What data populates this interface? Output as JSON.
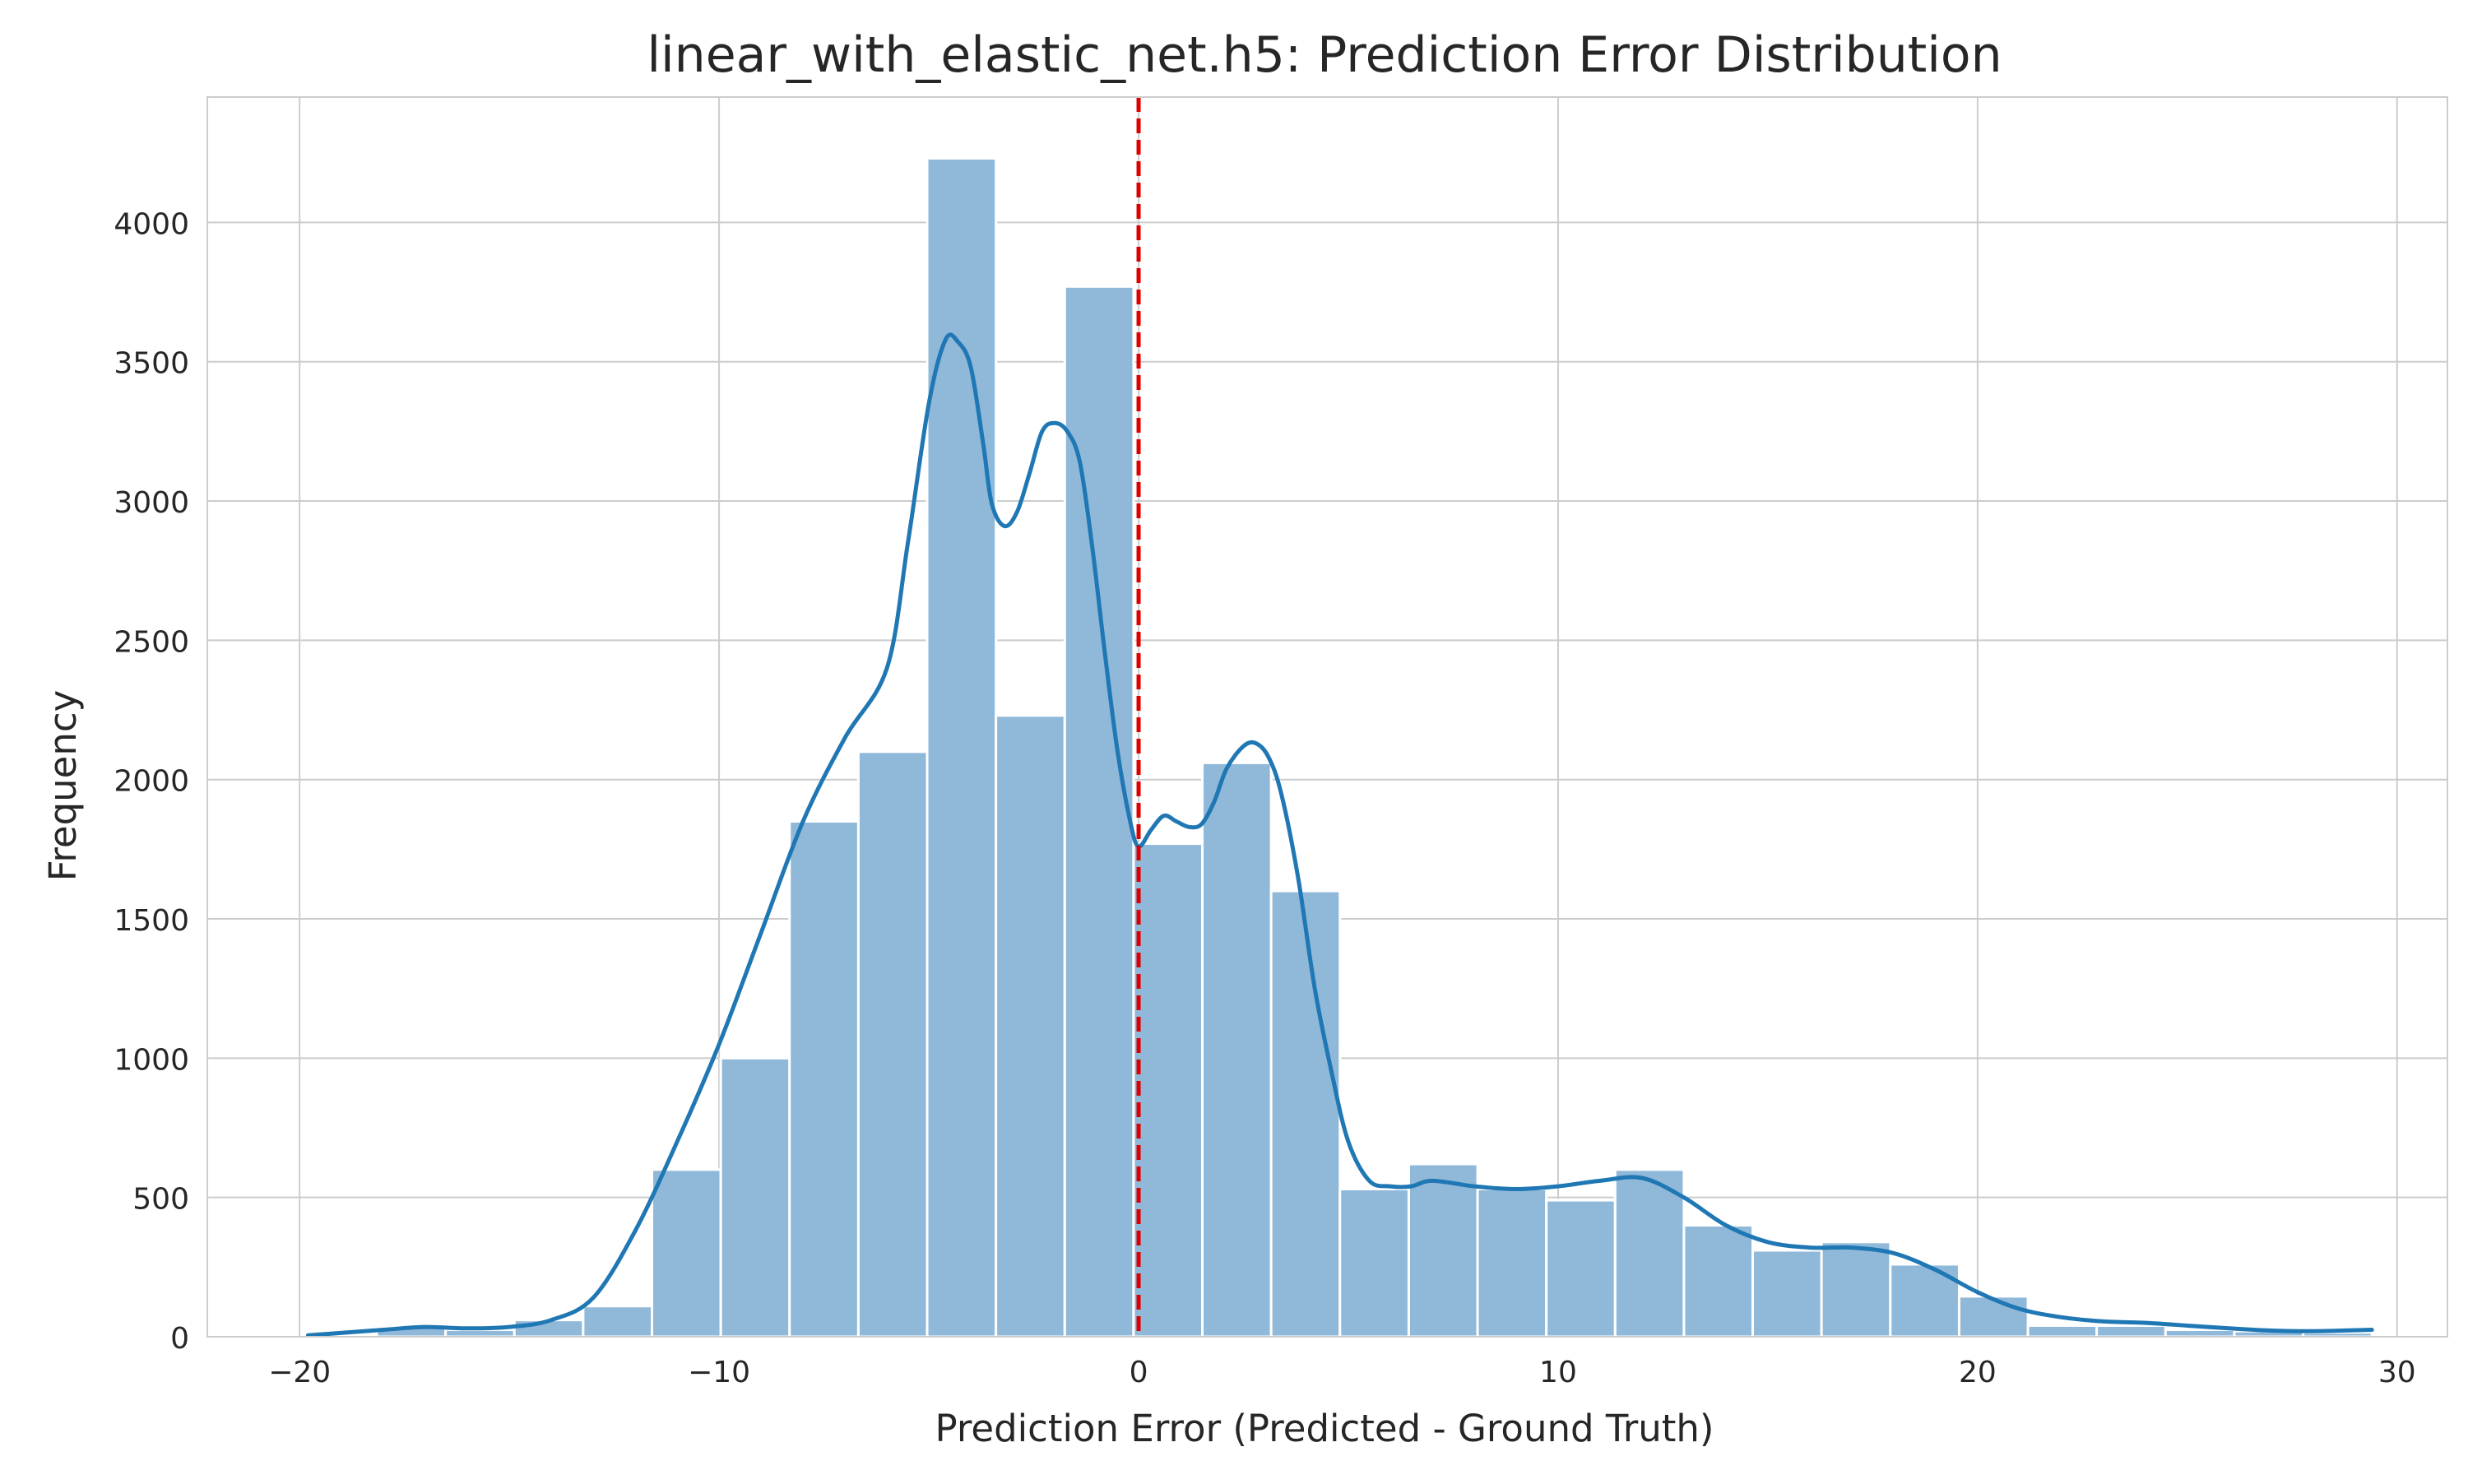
{
  "chart_data": {
    "type": "histogram",
    "title": "linear_with_elastic_net.h5: Prediction Error Distribution",
    "xlabel": "Prediction Error (Predicted - Ground Truth)",
    "ylabel": "Frequency",
    "xlim": [
      -22.2,
      31.2
    ],
    "ylim": [
      0,
      4450
    ],
    "xticks": [
      -20,
      -10,
      0,
      10,
      20,
      30
    ],
    "xtick_labels": [
      "−20",
      "−10",
      "0",
      "10",
      "20",
      "30"
    ],
    "yticks": [
      0,
      500,
      1000,
      1500,
      2000,
      2500,
      3000,
      3500,
      4000
    ],
    "grid": true,
    "bar_color": "#8fb8d9",
    "kde_color": "#1f77b4",
    "reference_line": {
      "x": 0,
      "color": "#dd0000",
      "style": "dashed"
    },
    "bins": [
      {
        "x0": -19.8,
        "x1": -18.16,
        "value": 5
      },
      {
        "x0": -18.16,
        "x1": -16.52,
        "value": 35
      },
      {
        "x0": -16.52,
        "x1": -14.88,
        "value": 25
      },
      {
        "x0": -14.88,
        "x1": -13.24,
        "value": 60
      },
      {
        "x0": -13.24,
        "x1": -11.6,
        "value": 110
      },
      {
        "x0": -11.6,
        "x1": -9.96,
        "value": 600
      },
      {
        "x0": -9.96,
        "x1": -8.32,
        "value": 1000
      },
      {
        "x0": -8.32,
        "x1": -6.68,
        "value": 1850
      },
      {
        "x0": -6.68,
        "x1": -5.04,
        "value": 2100
      },
      {
        "x0": -5.04,
        "x1": -3.4,
        "value": 4230
      },
      {
        "x0": -3.4,
        "x1": -1.76,
        "value": 2230
      },
      {
        "x0": -1.76,
        "x1": -0.12,
        "value": 3770
      },
      {
        "x0": -0.12,
        "x1": 1.52,
        "value": 1770
      },
      {
        "x0": 1.52,
        "x1": 3.16,
        "value": 2060
      },
      {
        "x0": 3.16,
        "x1": 4.8,
        "value": 1600
      },
      {
        "x0": 4.8,
        "x1": 6.44,
        "value": 530
      },
      {
        "x0": 6.44,
        "x1": 8.08,
        "value": 620
      },
      {
        "x0": 8.08,
        "x1": 9.72,
        "value": 530
      },
      {
        "x0": 9.72,
        "x1": 11.36,
        "value": 490
      },
      {
        "x0": 11.36,
        "x1": 13.0,
        "value": 600
      },
      {
        "x0": 13.0,
        "x1": 14.64,
        "value": 400
      },
      {
        "x0": 14.64,
        "x1": 16.28,
        "value": 310
      },
      {
        "x0": 16.28,
        "x1": 17.92,
        "value": 340
      },
      {
        "x0": 17.92,
        "x1": 19.56,
        "value": 260
      },
      {
        "x0": 19.56,
        "x1": 21.2,
        "value": 145
      },
      {
        "x0": 21.2,
        "x1": 22.84,
        "value": 40
      },
      {
        "x0": 22.84,
        "x1": 24.48,
        "value": 40
      },
      {
        "x0": 24.48,
        "x1": 26.12,
        "value": 25
      },
      {
        "x0": 26.12,
        "x1": 27.76,
        "value": 20
      },
      {
        "x0": 27.76,
        "x1": 29.4,
        "value": 15
      }
    ],
    "kde": {
      "x": [
        -19.8,
        -18,
        -17,
        -16,
        -15,
        -14,
        -13,
        -12,
        -11,
        -10,
        -9,
        -8,
        -7,
        -6,
        -5.5,
        -5,
        -4.6,
        -4.3,
        -4,
        -3.7,
        -3.5,
        -3.2,
        -2.9,
        -2.6,
        -2.3,
        -2,
        -1.7,
        -1.4,
        -1.1,
        -0.8,
        -0.5,
        -0.2,
        0,
        0.3,
        0.6,
        0.9,
        1.2,
        1.5,
        1.8,
        2.1,
        2.5,
        2.8,
        3.1,
        3.4,
        3.8,
        4.2,
        4.6,
        5,
        5.5,
        6,
        6.5,
        7,
        8,
        9,
        10,
        11,
        12,
        13,
        14,
        15,
        16,
        17,
        18,
        19,
        20,
        21,
        22,
        23,
        24,
        25,
        26,
        27,
        28,
        29.4
      ],
      "y": [
        5,
        25,
        35,
        30,
        35,
        60,
        140,
        380,
        700,
        1050,
        1450,
        1850,
        2150,
        2400,
        2850,
        3350,
        3580,
        3570,
        3480,
        3200,
        2990,
        2910,
        2960,
        3100,
        3250,
        3280,
        3250,
        3140,
        2830,
        2450,
        2100,
        1850,
        1760,
        1820,
        1870,
        1850,
        1830,
        1840,
        1920,
        2040,
        2120,
        2130,
        2080,
        1950,
        1650,
        1250,
        950,
        700,
        560,
        540,
        540,
        560,
        540,
        530,
        540,
        560,
        570,
        500,
        400,
        340,
        320,
        320,
        300,
        240,
        160,
        100,
        70,
        55,
        50,
        40,
        30,
        22,
        20,
        25
      ]
    }
  }
}
